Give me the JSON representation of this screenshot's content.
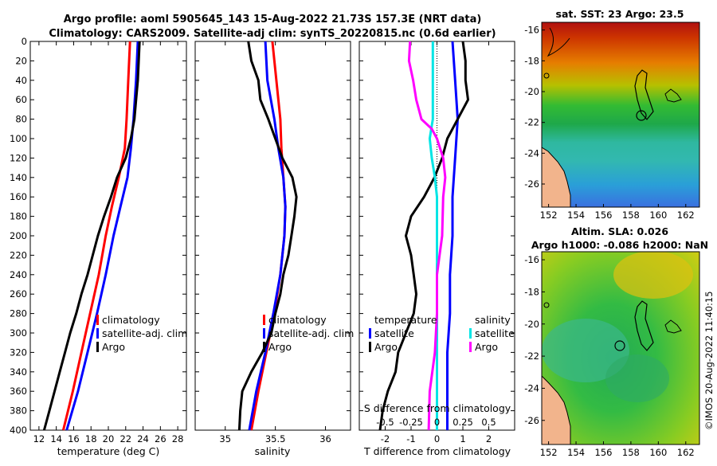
{
  "header": {
    "line1": "Argo profile: aoml 5905645_143 15-Aug-2022 21.73S 157.3E (NRT data)",
    "line2": "Climatology: CARS2009. Satellite-adj clim: synTS_20220815.nc (0.6d earlier)"
  },
  "colors": {
    "climatology": "#ff0000",
    "satellite": "#0000ff",
    "argo": "#000000",
    "s_diff_satellite": "#00e5e5",
    "s_diff_argo": "#ff00ff"
  },
  "chart_data": [
    {
      "type": "line",
      "id": "temperature",
      "xlabel": "temperature (deg C)",
      "ylabel": "",
      "xlim": [
        11,
        29
      ],
      "ylim": [
        400,
        0
      ],
      "xticks": [
        "12",
        "14",
        "16",
        "18",
        "20",
        "22",
        "24",
        "26",
        "28"
      ],
      "xtick_values": [
        12,
        14,
        16,
        18,
        20,
        22,
        24,
        26,
        28
      ],
      "yticks": [
        "0",
        "20",
        "40",
        "60",
        "80",
        "100",
        "120",
        "140",
        "160",
        "180",
        "200",
        "220",
        "240",
        "260",
        "280",
        "300",
        "320",
        "340",
        "360",
        "380",
        "400"
      ],
      "ytick_values": [
        0,
        20,
        40,
        60,
        80,
        100,
        120,
        140,
        160,
        180,
        200,
        220,
        240,
        260,
        280,
        300,
        320,
        340,
        360,
        380,
        400
      ],
      "legend": [
        "climatology",
        "satellite-adj. clim",
        "Argo"
      ],
      "series": [
        {
          "name": "climatology",
          "color": "#ff0000",
          "depth": [
            0,
            40,
            80,
            110,
            140,
            170,
            200,
            240,
            280,
            320,
            360,
            400
          ],
          "values": [
            22.5,
            22.3,
            22.1,
            21.9,
            21.2,
            20.4,
            19.7,
            18.9,
            17.9,
            16.9,
            15.9,
            14.8
          ]
        },
        {
          "name": "satellite-adj. clim",
          "color": "#0000ff",
          "depth": [
            0,
            40,
            80,
            110,
            140,
            170,
            200,
            240,
            280,
            320,
            360,
            400
          ],
          "values": [
            23.4,
            23.2,
            22.9,
            22.6,
            22.2,
            21.4,
            20.6,
            19.7,
            18.7,
            17.6,
            16.5,
            15.2
          ]
        },
        {
          "name": "Argo",
          "color": "#000000",
          "depth": [
            0,
            20,
            40,
            60,
            80,
            100,
            120,
            140,
            160,
            180,
            200,
            220,
            240,
            260,
            280,
            300,
            320,
            340,
            360,
            380,
            400
          ],
          "values": [
            23.6,
            23.5,
            23.4,
            23.2,
            23.0,
            22.6,
            22.0,
            21.0,
            20.3,
            19.5,
            18.8,
            18.2,
            17.6,
            16.9,
            16.3,
            15.6,
            15.0,
            14.4,
            13.8,
            13.2,
            12.6
          ]
        }
      ]
    },
    {
      "type": "line",
      "id": "salinity",
      "xlabel": "salinity",
      "ylabel": "",
      "xlim": [
        34.7,
        36.25
      ],
      "ylim": [
        400,
        0
      ],
      "xticks": [
        "35",
        "35.5",
        "36"
      ],
      "xtick_values": [
        35,
        35.5,
        36
      ],
      "legend": [
        "climatology",
        "satellite-adj. clim",
        "Argo"
      ],
      "series": [
        {
          "name": "climatology",
          "color": "#ff0000",
          "depth": [
            0,
            40,
            80,
            110,
            140,
            170,
            200,
            240,
            280,
            320,
            360,
            400
          ],
          "values": [
            35.47,
            35.51,
            35.55,
            35.56,
            35.58,
            35.6,
            35.59,
            35.55,
            35.49,
            35.41,
            35.33,
            35.26
          ]
        },
        {
          "name": "satellite-adj. clim",
          "color": "#0000ff",
          "depth": [
            0,
            40,
            80,
            110,
            140,
            170,
            200,
            240,
            280,
            320,
            360,
            400
          ],
          "values": [
            35.4,
            35.42,
            35.49,
            35.53,
            35.58,
            35.6,
            35.59,
            35.55,
            35.48,
            35.4,
            35.31,
            35.24
          ]
        },
        {
          "name": "Argo",
          "color": "#000000",
          "depth": [
            0,
            20,
            40,
            60,
            80,
            100,
            120,
            140,
            160,
            180,
            200,
            220,
            240,
            260,
            280,
            300,
            320,
            340,
            360,
            380,
            400
          ],
          "values": [
            35.23,
            35.26,
            35.33,
            35.35,
            35.43,
            35.5,
            35.57,
            35.67,
            35.71,
            35.69,
            35.66,
            35.63,
            35.58,
            35.55,
            35.5,
            35.46,
            35.37,
            35.26,
            35.17,
            35.15,
            35.14
          ]
        }
      ]
    },
    {
      "type": "line",
      "id": "difference",
      "xlabel": "T difference from climatology",
      "top_xlabel": "S difference from climatology",
      "xlim": [
        -3,
        3
      ],
      "ylim": [
        400,
        0
      ],
      "xticks": [
        "-2",
        "-1",
        "0",
        "1",
        "2"
      ],
      "xtick_values": [
        -2,
        -1,
        0,
        1,
        2
      ],
      "s_xticks": [
        "-0.5",
        "-0.25",
        "0",
        "0.25",
        "0.5"
      ],
      "s_xtick_values": [
        -0.5,
        -0.25,
        0,
        0.25,
        0.5
      ],
      "legend_temperature": {
        "title": "temperature",
        "entries": [
          "satellite",
          "Argo"
        ]
      },
      "legend_salinity": {
        "title": "salinity",
        "entries": [
          "satellite",
          "Argo"
        ]
      },
      "series": [
        {
          "name": "temperature satellite",
          "color": "#0000ff",
          "depth": [
            0,
            40,
            80,
            120,
            160,
            200,
            240,
            280,
            320,
            360,
            400
          ],
          "values": [
            0.6,
            0.7,
            0.8,
            0.7,
            0.6,
            0.6,
            0.5,
            0.5,
            0.4,
            0.4,
            0.4
          ]
        },
        {
          "name": "temperature Argo",
          "color": "#000000",
          "depth": [
            0,
            20,
            40,
            60,
            80,
            100,
            120,
            140,
            160,
            180,
            200,
            220,
            240,
            260,
            280,
            300,
            320,
            340,
            360,
            380,
            400
          ],
          "values": [
            1.0,
            1.1,
            1.1,
            1.2,
            0.8,
            0.4,
            0.2,
            -0.1,
            -0.5,
            -1.0,
            -1.2,
            -1.0,
            -0.9,
            -0.8,
            -0.9,
            -1.2,
            -1.5,
            -1.6,
            -1.9,
            -2.1,
            -2.2
          ]
        },
        {
          "name": "salinity satellite",
          "color": "#00e5e5",
          "depth": [
            0,
            40,
            80,
            100,
            120,
            140,
            160,
            200,
            400
          ],
          "values": [
            -0.04,
            -0.04,
            -0.04,
            -0.07,
            -0.05,
            -0.02,
            0,
            0,
            0
          ]
        },
        {
          "name": "salinity Argo",
          "color": "#ff00ff",
          "depth": [
            0,
            20,
            40,
            60,
            80,
            90,
            100,
            120,
            140,
            160,
            200,
            240,
            280,
            320,
            360,
            400
          ],
          "values": [
            -0.26,
            -0.27,
            -0.23,
            -0.2,
            -0.15,
            -0.05,
            0.0,
            0.06,
            0.08,
            0.06,
            0.05,
            0.0,
            0.0,
            -0.02,
            -0.07,
            -0.08
          ]
        }
      ]
    },
    {
      "type": "heatmap",
      "id": "sst_map",
      "title": "sat. SST: 23 Argo: 23.5",
      "xticks": [
        "152",
        "154",
        "156",
        "158",
        "160",
        "162"
      ],
      "yticks": [
        "-16",
        "-18",
        "-20",
        "-22",
        "-24",
        "-26"
      ],
      "xlim": [
        151.5,
        163
      ],
      "ylim": [
        -27.5,
        -15.5
      ],
      "marker": {
        "lon": 157.3,
        "lat": -21.73
      }
    },
    {
      "type": "heatmap",
      "id": "sla_map",
      "title": "Altim. SLA: 0.026",
      "subtitle": "Argo h1000: -0.086 h2000: NaN",
      "xticks": [
        "152",
        "154",
        "156",
        "158",
        "160",
        "162"
      ],
      "yticks": [
        "-16",
        "-18",
        "-20",
        "-22",
        "-24",
        "-26"
      ],
      "xlim": [
        151.5,
        163
      ],
      "ylim": [
        -27.5,
        -15.5
      ],
      "marker": {
        "lon": 157.3,
        "lat": -21.73
      }
    }
  ],
  "footer": {
    "credit": "©IMOS 20-Aug-2022 11:40:15"
  }
}
